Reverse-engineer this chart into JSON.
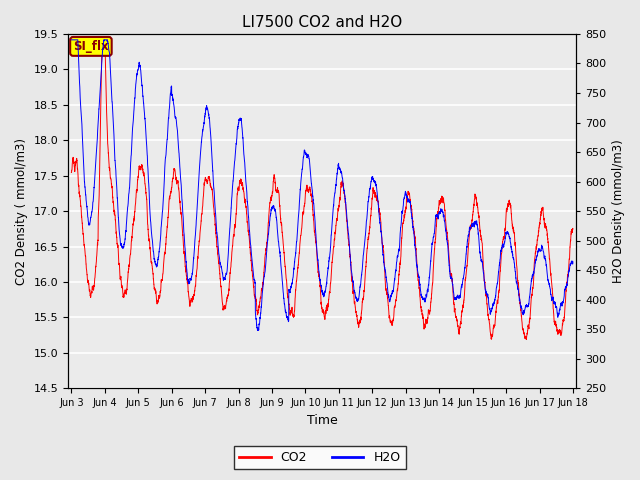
{
  "title": "LI7500 CO2 and H2O",
  "xlabel": "Time",
  "ylabel_left": "CO2 Density ( mmol/m3)",
  "ylabel_right": "H2O Density (mmol/m3)",
  "ylim_left": [
    14.5,
    19.5
  ],
  "ylim_right": [
    250,
    850
  ],
  "yticks_left": [
    14.5,
    15.0,
    15.5,
    16.0,
    16.5,
    17.0,
    17.5,
    18.0,
    18.5,
    19.0,
    19.5
  ],
  "yticks_right": [
    250,
    300,
    350,
    400,
    450,
    500,
    550,
    600,
    650,
    700,
    750,
    800,
    850
  ],
  "co2_color": "#FF0000",
  "h2o_color": "#0000FF",
  "fig_facecolor": "#E8E8E8",
  "plot_facecolor": "#EBEBEB",
  "annotation_text": "SI_flx",
  "annotation_bg": "#FFFF00",
  "annotation_border": "#8B0000",
  "x_tick_labels": [
    "Jun 3",
    "Jun 4",
    "Jun 5",
    "Jun 6",
    "Jun 7",
    "Jun 8",
    "Jun 9",
    "Jun 10",
    "Jun 11",
    "Jun 12",
    "Jun 13",
    "Jun 14",
    "Jun 15",
    "Jun 16",
    "Jun 17",
    "Jun 18"
  ],
  "n_points": 5000
}
